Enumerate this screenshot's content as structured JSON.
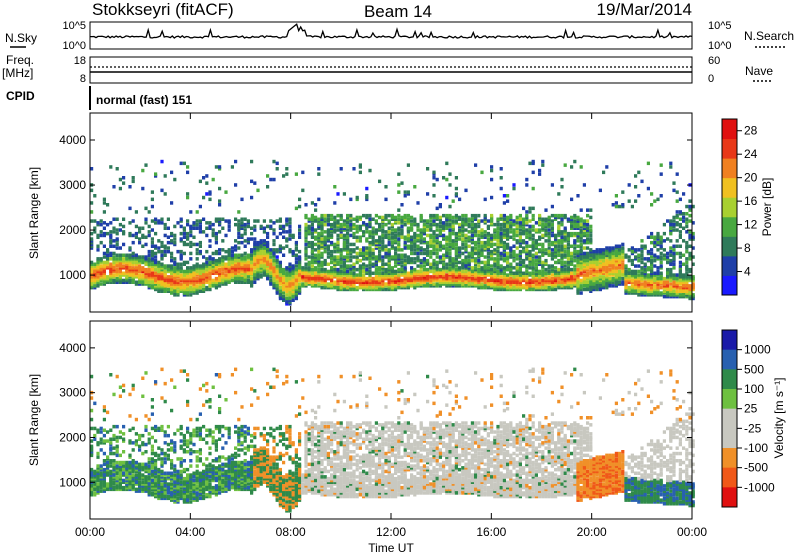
{
  "header": {
    "station": "Stokkseyri (fitACF)",
    "beam": "Beam 14",
    "date": "19/Mar/2014"
  },
  "strip_labels": {
    "nsky": "N.Sky",
    "nsky_top": "10^5",
    "nsky_bottom": "10^0",
    "nsearch": "N.Search",
    "nsearch_top": "10^5",
    "nsearch_bottom": "10^0",
    "freq": "Freq.",
    "freq_unit": "[MHz]",
    "freq_top": "18",
    "freq_bottom": "8",
    "nave": "Nave",
    "nave_top": "60",
    "nave_bottom": "0",
    "cpid": "CPID",
    "cpid_value": "normal (fast) 151"
  },
  "colors": {
    "power": [
      "#1a1aff",
      "#1f3fa8",
      "#2f7a5a",
      "#48a840",
      "#a8d030",
      "#f0c020",
      "#f08020",
      "#e83818",
      "#e01010"
    ],
    "velocity": [
      "#e01010",
      "#f05818",
      "#f09028",
      "#c8c8c0",
      "#c8c8c0",
      "#6ec040",
      "#2f8a4a",
      "#2860b0",
      "#1a1aa8"
    ],
    "gray": "#c8c8c0"
  },
  "chart_data": [
    {
      "type": "heatmap",
      "title": "Power",
      "ylabel": "Slant Range [km]",
      "xlabel": "Time UT",
      "ylim": [
        180,
        4600
      ],
      "xlim": [
        0,
        24
      ],
      "yticks": [
        "1000",
        "2000",
        "3000",
        "4000"
      ],
      "ytick_values": [
        1000,
        2000,
        3000,
        4000
      ],
      "colorbar": {
        "label": "Power [dB]",
        "ticks": [
          "4",
          "8",
          "12",
          "16",
          "20",
          "24",
          "28"
        ],
        "range": [
          0,
          30
        ]
      },
      "features": [
        {
          "t0": 0.0,
          "t1": 6.3,
          "center_km": 1050,
          "width_km": 300,
          "peak_db": 28
        },
        {
          "t0": 8.4,
          "t1": 19.5,
          "center_km": 950,
          "width_km": 200,
          "peak_db": 28
        },
        {
          "t0": 8.6,
          "t1": 19.8,
          "center_km": 1800,
          "width_km": 1000,
          "peak_db": 10
        },
        {
          "t0": 19.3,
          "t1": 21.5,
          "center_km": 1100,
          "width_km": 500,
          "peak_db": 24
        },
        {
          "t0": 21.0,
          "t1": 24.0,
          "center_km": 850,
          "width_km": 250,
          "peak_db": 26
        }
      ]
    },
    {
      "type": "heatmap",
      "title": "Velocity",
      "ylabel": "Slant Range [km]",
      "xlabel": "Time UT",
      "ylim": [
        180,
        4600
      ],
      "xlim": [
        0,
        24
      ],
      "yticks": [
        "1000",
        "2000",
        "3000",
        "4000"
      ],
      "ytick_values": [
        1000,
        2000,
        3000,
        4000
      ],
      "colorbar": {
        "label": "Velocity [m s⁻¹]",
        "ticks": [
          "1000",
          "500",
          "100",
          "25",
          "-25",
          "-100",
          "-500",
          "-1000"
        ]
      },
      "features": [
        {
          "t0": 0.0,
          "t1": 6.3,
          "center_km": 1050,
          "width_km": 400,
          "velocity": "positive (green/blue)"
        },
        {
          "t0": 8.4,
          "t1": 19.8,
          "center_km": 1300,
          "width_km": 1200,
          "velocity": "near zero (gray)"
        },
        {
          "t0": 19.3,
          "t1": 21.2,
          "center_km": 1000,
          "width_km": 500,
          "velocity": "negative (orange)"
        },
        {
          "t0": 21.0,
          "t1": 24.0,
          "center_km": 900,
          "width_km": 300,
          "velocity": "positive (green)"
        }
      ]
    }
  ],
  "time_axis": {
    "label": "Time UT",
    "ticks": [
      "00:00",
      "04:00",
      "08:00",
      "12:00",
      "16:00",
      "20:00",
      "00:00"
    ],
    "tick_hours": [
      0,
      4,
      8,
      12,
      16,
      20,
      24
    ]
  }
}
